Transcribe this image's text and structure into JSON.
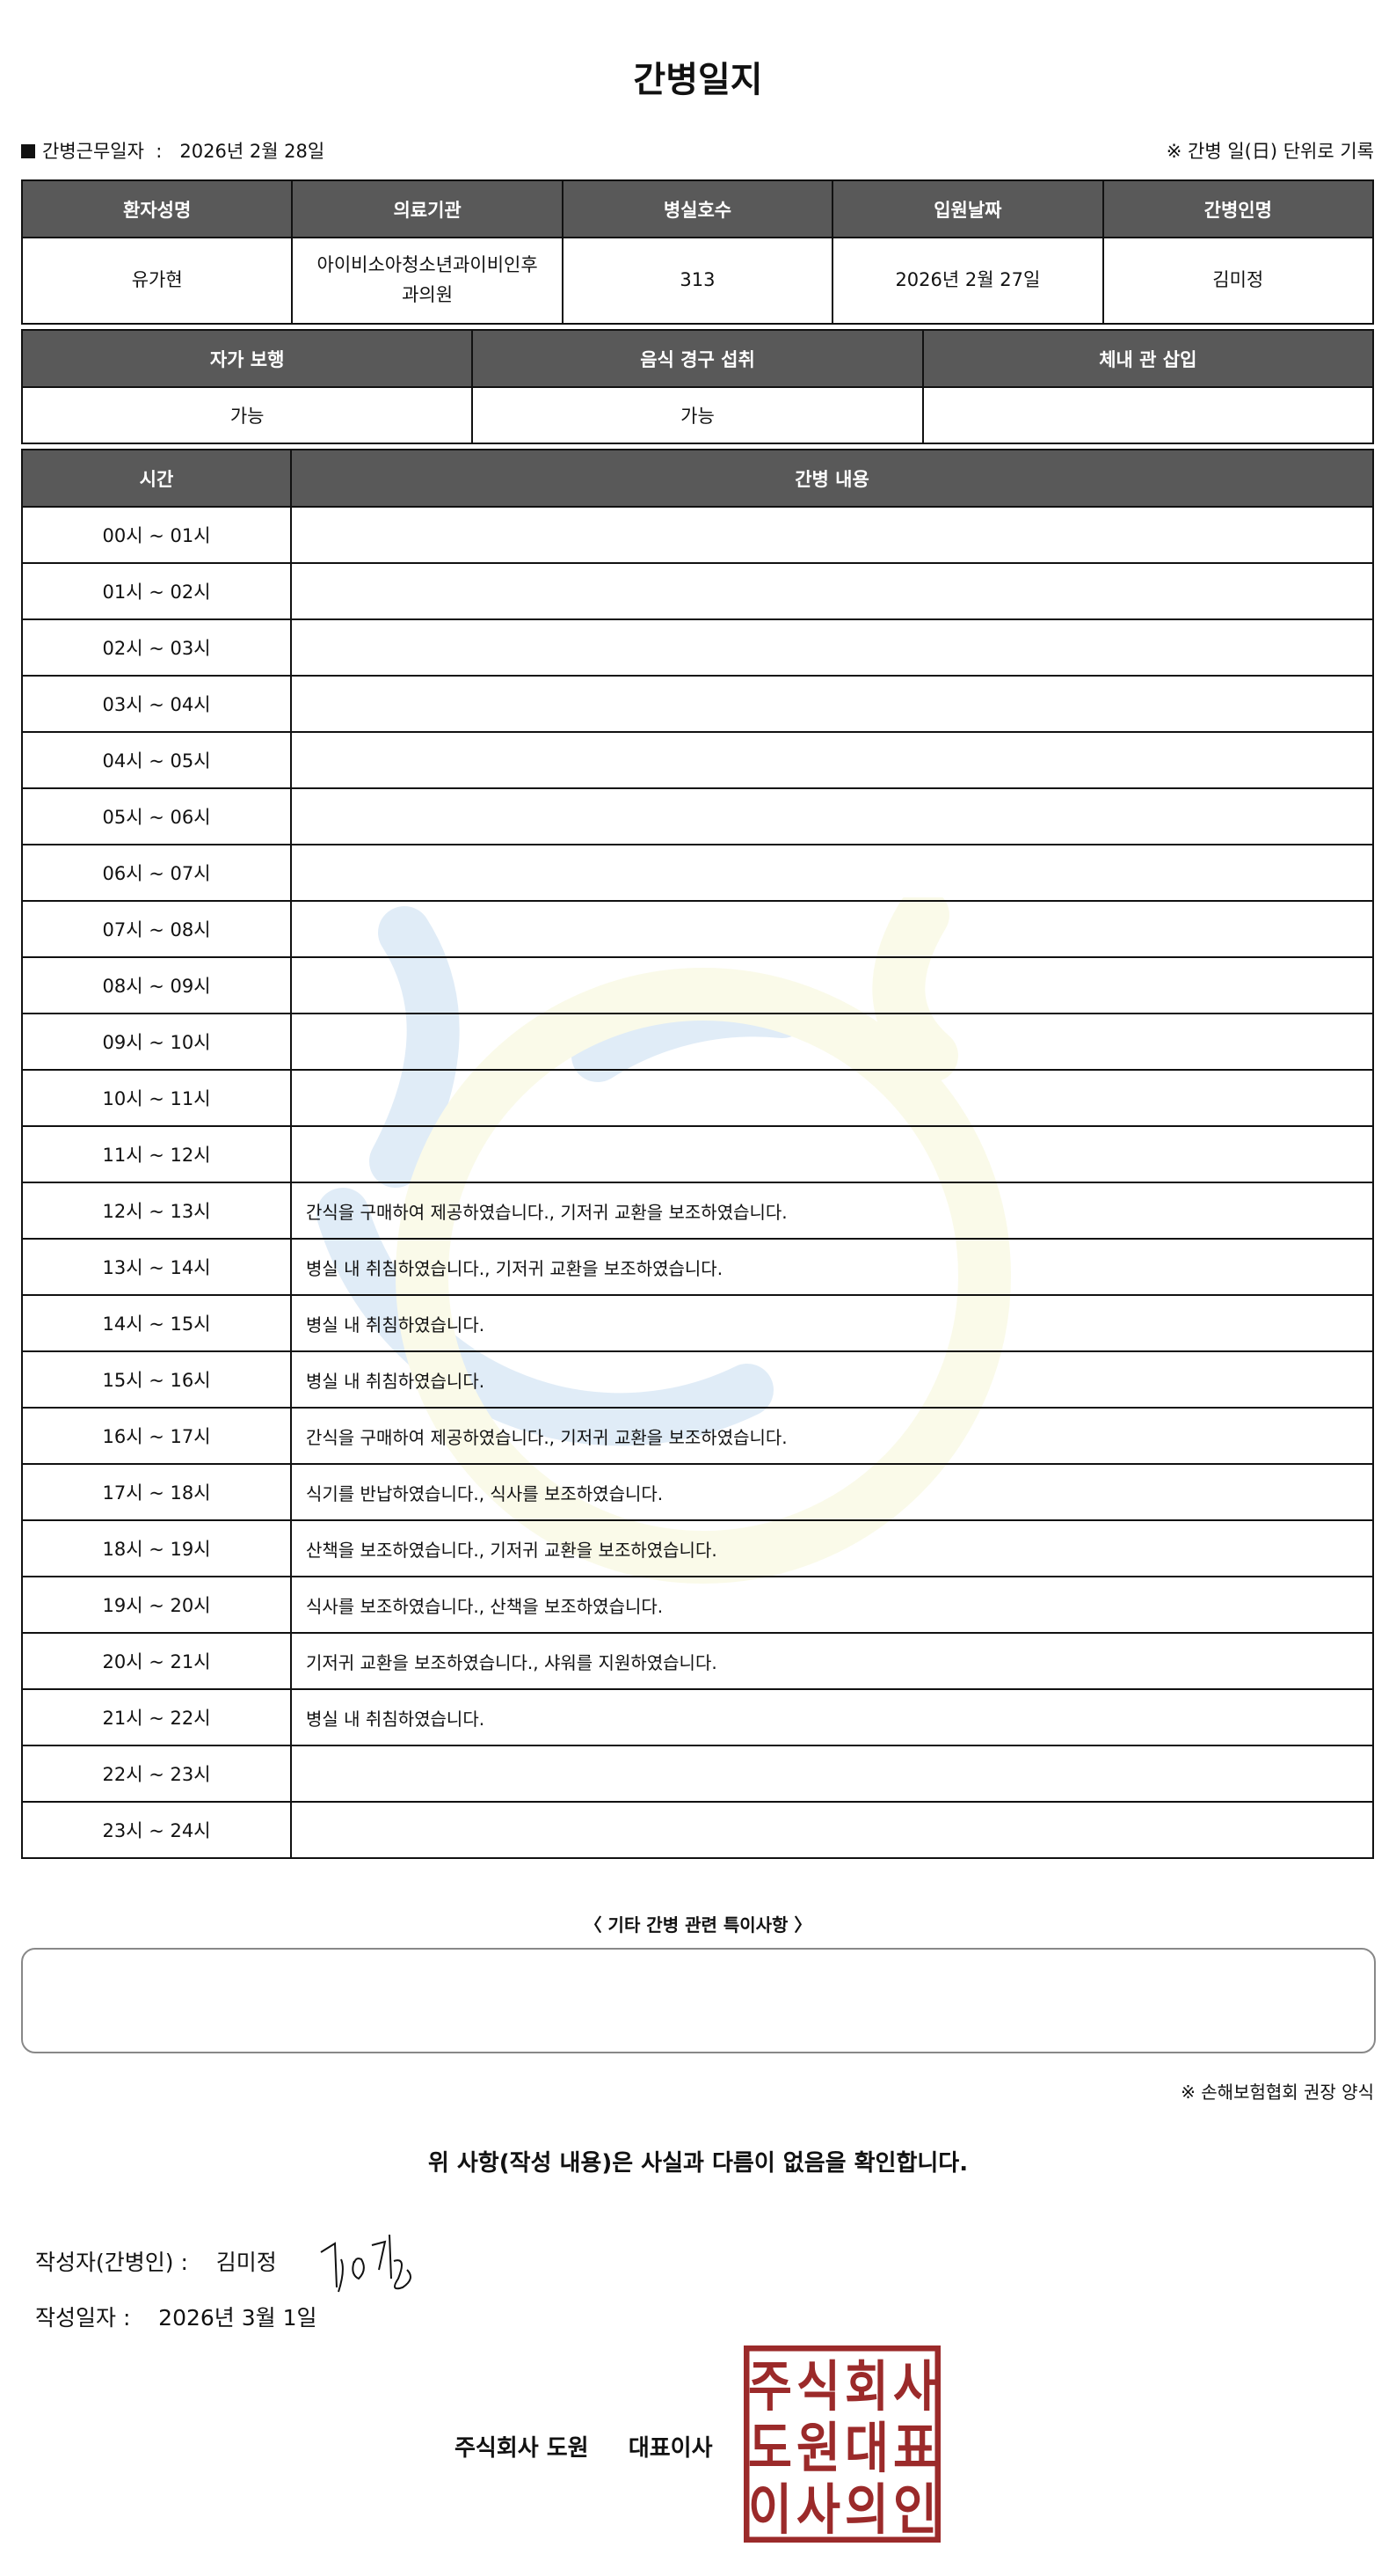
{
  "title": "간병일지",
  "work_date_label": "간병근무일자",
  "work_date_sep": ":",
  "work_date": "2026년 2월 28일",
  "record_note": "※ 간병 일(日) 단위로 기록",
  "patient_table": {
    "headers": [
      "환자성명",
      "의료기관",
      "병실호수",
      "입원날짜",
      "간병인명"
    ],
    "values": [
      "유가현",
      "아이비소아청소년과이비인후과의원",
      "313",
      "2026년 2월 27일",
      "김미정"
    ]
  },
  "status_table": {
    "headers": [
      "자가 보행",
      "음식 경구 섭취",
      "체내 관 삽입"
    ],
    "values": [
      "가능",
      "가능",
      ""
    ]
  },
  "log_table": {
    "headers": [
      "시간",
      "간병 내용"
    ],
    "rows": [
      {
        "time": "00시 ~ 01시",
        "content": ""
      },
      {
        "time": "01시 ~ 02시",
        "content": ""
      },
      {
        "time": "02시 ~ 03시",
        "content": ""
      },
      {
        "time": "03시 ~ 04시",
        "content": ""
      },
      {
        "time": "04시 ~ 05시",
        "content": ""
      },
      {
        "time": "05시 ~ 06시",
        "content": ""
      },
      {
        "time": "06시 ~ 07시",
        "content": ""
      },
      {
        "time": "07시 ~ 08시",
        "content": ""
      },
      {
        "time": "08시 ~ 09시",
        "content": ""
      },
      {
        "time": "09시 ~ 10시",
        "content": ""
      },
      {
        "time": "10시 ~ 11시",
        "content": ""
      },
      {
        "time": "11시 ~ 12시",
        "content": ""
      },
      {
        "time": "12시 ~ 13시",
        "content": "간식을 구매하여 제공하였습니다., 기저귀 교환을 보조하였습니다."
      },
      {
        "time": "13시 ~ 14시",
        "content": "병실 내 취침하였습니다., 기저귀 교환을 보조하였습니다."
      },
      {
        "time": "14시 ~ 15시",
        "content": "병실 내 취침하였습니다."
      },
      {
        "time": "15시 ~ 16시",
        "content": "병실 내 취침하였습니다."
      },
      {
        "time": "16시 ~ 17시",
        "content": "간식을 구매하여 제공하였습니다., 기저귀 교환을 보조하였습니다."
      },
      {
        "time": "17시 ~ 18시",
        "content": "식기를 반납하였습니다., 식사를 보조하였습니다."
      },
      {
        "time": "18시 ~ 19시",
        "content": "산책을 보조하였습니다., 기저귀 교환을 보조하였습니다."
      },
      {
        "time": "19시 ~ 20시",
        "content": "식사를 보조하였습니다., 산책을 보조하였습니다."
      },
      {
        "time": "20시 ~ 21시",
        "content": "기저귀 교환을 보조하였습니다., 샤워를 지원하였습니다."
      },
      {
        "time": "21시 ~ 22시",
        "content": "병실 내 취침하였습니다."
      },
      {
        "time": "22시 ~ 23시",
        "content": ""
      },
      {
        "time": "23시 ~ 24시",
        "content": ""
      }
    ]
  },
  "special_notes_title": "〈 기타 간병 관련 특이사항 〉",
  "special_notes": "",
  "association_note": "※ 손해보험협회 권장 양식",
  "confirmation": "위 사항(작성 내용)은 사실과 다름이 없음을 확인합니다.",
  "writer_label": "작성자(간병인) :",
  "writer_name": "김미정",
  "written_date_label": "작성일자 :",
  "written_date": "2026년 3월 1일",
  "company": "주식회사 도원",
  "ceo_title": "대표이사",
  "stamp_text": "주식회사도원대표이사의인",
  "colors": {
    "header_bg": "#595959",
    "stamp": "#9b2a2a",
    "watermark_blue": "#5b9bd5",
    "watermark_yellow": "#e6e88a"
  }
}
